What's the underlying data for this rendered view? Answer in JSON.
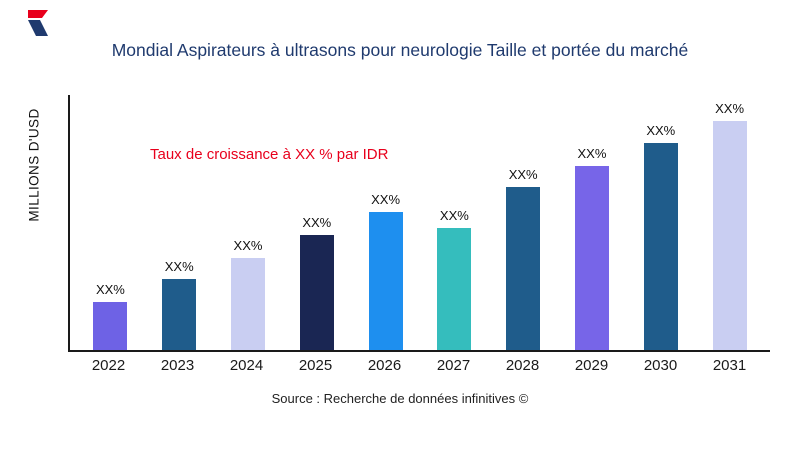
{
  "title": "Mondial Aspirateurs à ultrasons pour neurologie Taille et portée du marché",
  "ylabel": "MILLIONS D'USD",
  "annotation": "Taux de croissance à XX % par IDR",
  "source": "Source : Recherche de données infinitives ©",
  "logo_colors": {
    "red": "#e8001c",
    "navy": "#1f3a6e"
  },
  "chart_data": {
    "type": "bar",
    "title": "Mondial Aspirateurs à ultrasons pour neurologie Taille et portée du marché",
    "xlabel": "",
    "ylabel": "MILLIONS D'USD",
    "categories": [
      "2022",
      "2023",
      "2024",
      "2025",
      "2026",
      "2027",
      "2028",
      "2029",
      "2030",
      "2031"
    ],
    "values": [
      21,
      31,
      40,
      50,
      60,
      53,
      71,
      80,
      90,
      100
    ],
    "value_note": "relative bar heights (percent of tallest bar); numeric axis not shown, all bars labeled XX%",
    "bar_labels": [
      "XX%",
      "XX%",
      "XX%",
      "XX%",
      "XX%",
      "XX%",
      "XX%",
      "XX%",
      "XX%",
      "XX%"
    ],
    "bar_colors": [
      "#6e62e5",
      "#1f5c8b",
      "#c9cef2",
      "#1a2653",
      "#1e8fef",
      "#35bdbd",
      "#1f5c8b",
      "#7765e8",
      "#1f5c8b",
      "#c9cef2"
    ],
    "grid": false,
    "legend": "none",
    "annotation": "Taux de croissance à XX % par IDR"
  }
}
